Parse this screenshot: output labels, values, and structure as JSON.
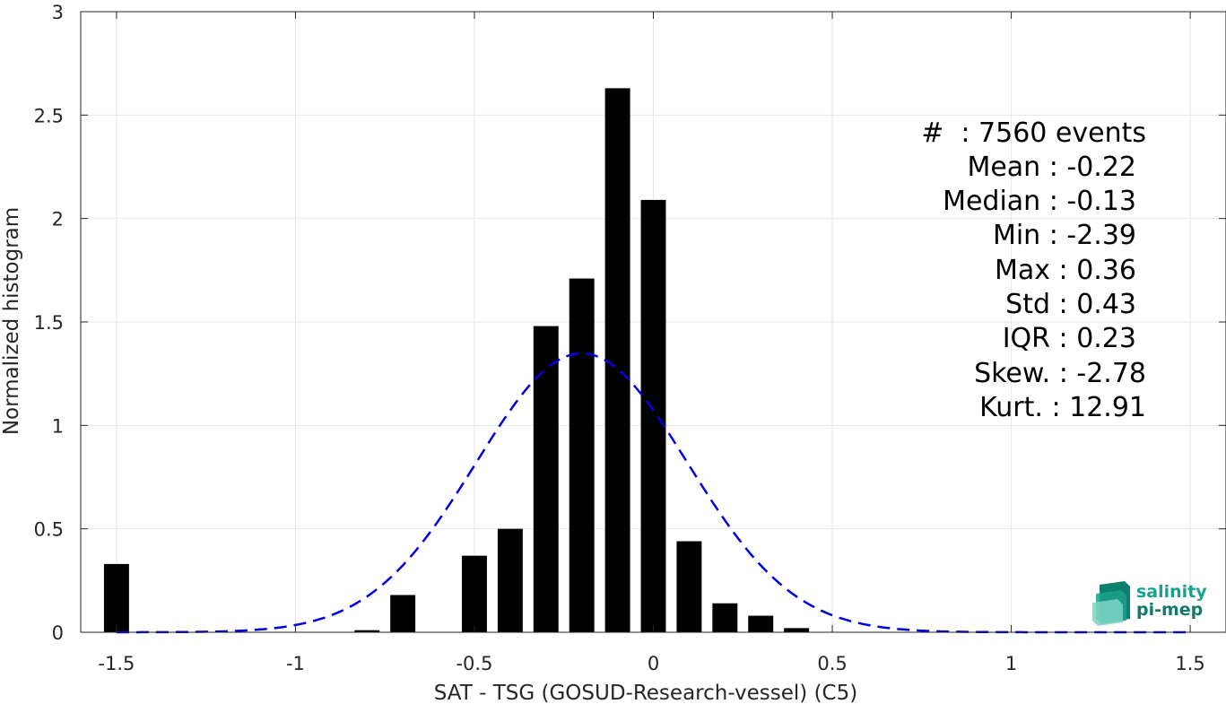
{
  "chart_data": {
    "type": "bar",
    "xlabel": "SAT - TSG (GOSUD-Research-vessel) (C5)",
    "ylabel": "Normalized histogram",
    "xlim": [
      -1.6,
      1.6
    ],
    "ylim": [
      0,
      3
    ],
    "grid": true,
    "xticks": [
      -1.5,
      -1,
      -0.5,
      0,
      0.5,
      1,
      1.5
    ],
    "xtick_labels": [
      "-1.5",
      "-1",
      "-0.5",
      "0",
      "0.5",
      "1",
      "1.5"
    ],
    "yticks": [
      0,
      0.5,
      1,
      1.5,
      2,
      2.5,
      3
    ],
    "ytick_labels": [
      "0",
      "0.5",
      "1",
      "1.5",
      "2",
      "2.5",
      "3"
    ],
    "bar_width": 0.07,
    "bars": [
      {
        "x": -1.5,
        "y": 0.33
      },
      {
        "x": -0.8,
        "y": 0.01
      },
      {
        "x": -0.7,
        "y": 0.18
      },
      {
        "x": -0.5,
        "y": 0.37
      },
      {
        "x": -0.4,
        "y": 0.5
      },
      {
        "x": -0.3,
        "y": 1.48
      },
      {
        "x": -0.2,
        "y": 1.71
      },
      {
        "x": -0.1,
        "y": 2.63
      },
      {
        "x": 0.0,
        "y": 2.09
      },
      {
        "x": 0.1,
        "y": 0.44
      },
      {
        "x": 0.2,
        "y": 0.14
      },
      {
        "x": 0.3,
        "y": 0.08
      },
      {
        "x": 0.4,
        "y": 0.02
      }
    ],
    "fit_curve": {
      "style": "dashed",
      "color": "#0000e6",
      "mean": -0.2,
      "std": 0.296,
      "x_range": [
        -1.5,
        1.5
      ]
    },
    "annotations": [
      "#  : 7560 events",
      "Mean : -0.22",
      "Median : -0.13",
      "Min : -2.39",
      "Max : 0.36",
      "Std : 0.43",
      "IQR : 0.23",
      "Skew. : -2.78",
      "Kurt. : 12.91"
    ]
  },
  "logo": {
    "line1": "salinity",
    "line2": "pi-mep",
    "color": "#1aa08c"
  }
}
